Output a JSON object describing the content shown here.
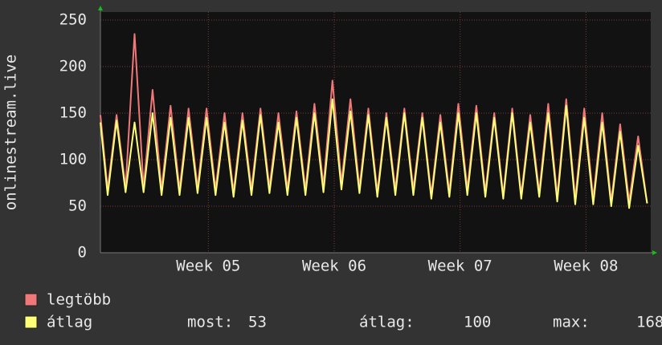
{
  "chart_data": {
    "type": "line",
    "y_label": "onlinestream.live",
    "x": [
      0,
      0.4,
      0.9,
      1.4,
      1.9,
      2.4,
      2.9,
      3.4,
      3.9,
      4.4,
      4.9,
      5.4,
      5.9,
      6.4,
      6.9,
      7.4,
      7.9,
      8.4,
      8.9,
      9.4,
      9.9,
      10.4,
      10.9,
      11.4,
      11.9,
      12.4,
      12.9,
      13.4,
      13.9,
      14.4,
      14.9,
      15.4,
      15.9,
      16.4,
      16.9,
      17.4,
      17.9,
      18.4,
      18.9,
      19.4,
      19.9,
      20.4,
      20.9,
      21.4,
      21.9,
      22.4,
      22.9,
      23.4,
      23.9,
      24.4,
      24.9,
      25.4,
      25.9,
      26.4,
      26.9,
      27.4,
      27.9,
      28.4,
      28.9,
      29.4,
      29.9,
      30.4
    ],
    "xlim": [
      0,
      30.6
    ],
    "xticks": [
      {
        "value": 6,
        "label": "Week 05"
      },
      {
        "value": 13,
        "label": "Week 06"
      },
      {
        "value": 20,
        "label": "Week 07"
      },
      {
        "value": 27,
        "label": "Week 08"
      }
    ],
    "ylim": [
      0,
      250
    ],
    "yticks": [
      0,
      50,
      100,
      150,
      200,
      250
    ],
    "grid": true,
    "series": [
      {
        "name": "legtöbb",
        "color": "#f07878",
        "values": [
          148,
          68,
          148,
          70,
          235,
          70,
          175,
          68,
          158,
          68,
          155,
          70,
          155,
          68,
          150,
          65,
          150,
          68,
          155,
          70,
          150,
          68,
          152,
          68,
          160,
          72,
          185,
          75,
          165,
          70,
          155,
          65,
          150,
          68,
          155,
          68,
          150,
          62,
          148,
          65,
          160,
          68,
          158,
          65,
          150,
          62,
          155,
          62,
          148,
          65,
          160,
          60,
          165,
          58,
          155,
          58,
          150,
          55,
          138,
          55,
          125,
          53
        ]
      },
      {
        "name": "átlag",
        "color": "#ffff78",
        "values": [
          140,
          62,
          142,
          65,
          140,
          65,
          150,
          62,
          145,
          62,
          145,
          64,
          145,
          62,
          140,
          60,
          142,
          62,
          148,
          64,
          140,
          62,
          145,
          62,
          150,
          65,
          165,
          68,
          152,
          64,
          148,
          60,
          145,
          62,
          150,
          62,
          145,
          58,
          140,
          60,
          150,
          62,
          150,
          60,
          145,
          58,
          150,
          58,
          140,
          60,
          150,
          55,
          158,
          52,
          145,
          52,
          140,
          50,
          130,
          48,
          115,
          53
        ]
      }
    ],
    "stats": [
      {
        "label": "most:",
        "value": 53
      },
      {
        "label": "átlag:",
        "value": 100
      },
      {
        "label": "max:",
        "value": 168
      }
    ]
  }
}
